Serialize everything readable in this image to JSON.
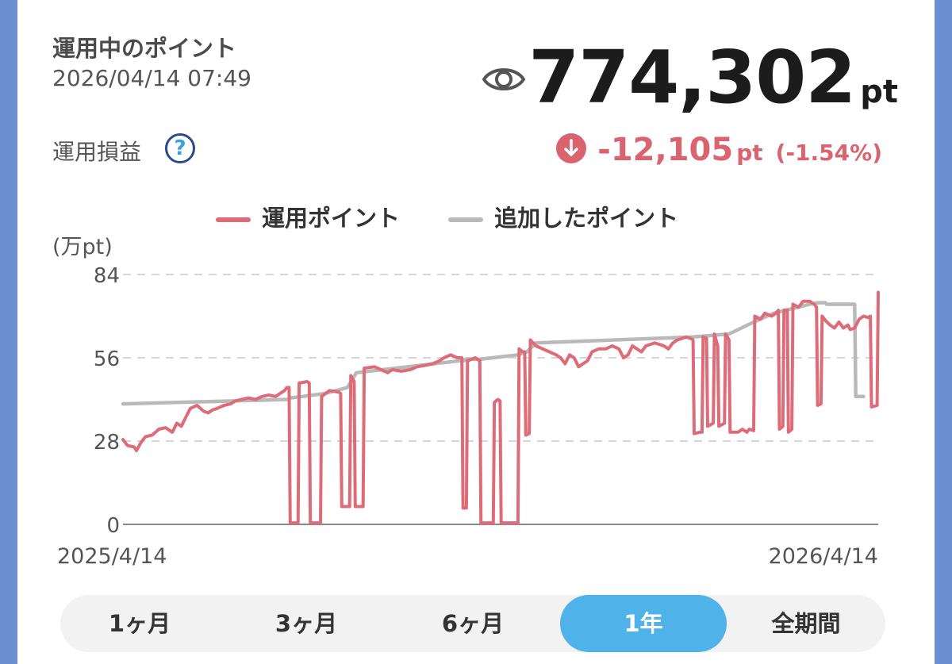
{
  "header": {
    "title": "運用中のポイント",
    "timestamp": "2026/04/14 07:49",
    "total_value": "774,302",
    "total_unit": "pt",
    "pl_label": "運用損益",
    "help_symbol": "?",
    "change_value": "-12,105",
    "change_unit": "pt",
    "change_percent": "(-1.54%)"
  },
  "colors": {
    "invested": "#dd6b78",
    "added": "#b9b9b9",
    "accent": "#4fb2e8",
    "negative": "#d9636e"
  },
  "chart_data": {
    "type": "line",
    "ylabel": "(万pt)",
    "ylim": [
      0,
      84
    ],
    "yticks": [
      "84",
      "56",
      "28",
      "0"
    ],
    "x_labels": [
      "2025/4/14",
      "2026/4/14"
    ],
    "grid": true,
    "legend_position": "top",
    "x_unit": "days since 2025/4/14",
    "series": [
      {
        "name": "運用ポイント",
        "color": "#dd6b78",
        "points": [
          [
            0,
            28.5
          ],
          [
            2,
            26.5
          ],
          [
            5,
            26
          ],
          [
            6,
            24.8
          ],
          [
            8,
            27.5
          ],
          [
            10,
            29.5
          ],
          [
            13,
            30
          ],
          [
            16,
            32
          ],
          [
            19,
            32.5
          ],
          [
            22,
            31
          ],
          [
            24,
            34
          ],
          [
            26,
            33
          ],
          [
            28,
            36
          ],
          [
            30,
            39
          ],
          [
            33,
            40
          ],
          [
            36,
            38
          ],
          [
            38,
            37.5
          ],
          [
            40,
            38.5
          ],
          [
            42,
            39
          ],
          [
            45,
            40
          ],
          [
            48,
            40.5
          ],
          [
            50,
            41.5
          ],
          [
            53,
            42
          ],
          [
            56,
            42.5
          ],
          [
            59,
            42
          ],
          [
            62,
            43
          ],
          [
            65,
            43.5
          ],
          [
            68,
            43
          ],
          [
            70,
            44
          ],
          [
            72,
            45
          ],
          [
            73,
            46
          ],
          [
            74,
            46
          ],
          [
            74.5,
            0.5
          ],
          [
            78,
            0.5
          ],
          [
            78.5,
            47.5
          ],
          [
            82,
            48
          ],
          [
            83,
            47.5
          ],
          [
            83.5,
            0.5
          ],
          [
            88,
            0.5
          ],
          [
            88.5,
            43
          ],
          [
            92,
            45
          ],
          [
            96,
            44.5
          ],
          [
            97,
            44
          ],
          [
            97.5,
            6
          ],
          [
            101,
            6
          ],
          [
            101.5,
            50
          ],
          [
            103,
            48
          ],
          [
            103.5,
            6
          ],
          [
            107,
            6
          ],
          [
            107.5,
            52.5
          ],
          [
            112,
            53
          ],
          [
            115,
            52
          ],
          [
            118,
            51
          ],
          [
            120,
            52
          ],
          [
            124,
            51.5
          ],
          [
            128,
            52
          ],
          [
            131,
            53
          ],
          [
            135,
            53.5
          ],
          [
            138,
            54
          ],
          [
            141,
            55
          ],
          [
            143,
            56
          ],
          [
            146,
            57
          ],
          [
            149,
            56
          ],
          [
            151,
            56
          ],
          [
            151.5,
            5.5
          ],
          [
            153,
            5.5
          ],
          [
            153.5,
            55
          ],
          [
            157,
            56
          ],
          [
            159,
            55
          ],
          [
            159.5,
            0.5
          ],
          [
            165,
            0.5
          ],
          [
            165.5,
            41
          ],
          [
            167,
            42
          ],
          [
            168,
            41.5
          ],
          [
            168.5,
            0.5
          ],
          [
            175,
            0.5
          ],
          [
            176,
            0.5
          ],
          [
            176.5,
            59
          ],
          [
            178,
            58
          ],
          [
            179,
            58
          ],
          [
            179.5,
            30
          ],
          [
            181,
            30.5
          ],
          [
            181.5,
            62
          ],
          [
            184,
            60
          ],
          [
            187,
            59
          ],
          [
            190,
            58
          ],
          [
            193,
            57
          ],
          [
            195,
            56
          ],
          [
            197,
            54
          ],
          [
            199,
            57
          ],
          [
            201,
            56
          ],
          [
            203,
            53
          ],
          [
            205,
            54
          ],
          [
            207,
            55
          ],
          [
            209,
            58
          ],
          [
            212,
            59
          ],
          [
            215,
            59
          ],
          [
            218,
            60
          ],
          [
            221,
            59
          ],
          [
            223,
            56
          ],
          [
            225,
            57
          ],
          [
            227,
            60
          ],
          [
            229,
            59
          ],
          [
            231,
            58
          ],
          [
            233,
            60
          ],
          [
            235,
            60.5
          ],
          [
            237,
            61
          ],
          [
            239,
            60.5
          ],
          [
            241,
            60
          ],
          [
            243,
            59
          ],
          [
            245,
            61
          ],
          [
            247,
            62
          ],
          [
            249,
            62.5
          ],
          [
            251,
            63
          ],
          [
            253,
            62.5
          ],
          [
            254,
            62
          ],
          [
            254.5,
            30.5
          ],
          [
            257,
            31
          ],
          [
            258,
            31
          ],
          [
            258.5,
            63
          ],
          [
            260,
            62.5
          ],
          [
            260.5,
            33
          ],
          [
            263,
            34
          ],
          [
            263.5,
            64
          ],
          [
            265,
            60
          ],
          [
            265.5,
            33
          ],
          [
            268,
            34
          ],
          [
            268.5,
            64
          ],
          [
            270,
            62
          ],
          [
            270.5,
            31
          ],
          [
            274,
            31
          ],
          [
            276,
            32
          ],
          [
            278,
            31
          ],
          [
            279,
            32
          ],
          [
            281,
            31.5
          ],
          [
            281.5,
            70
          ],
          [
            284,
            69
          ],
          [
            286,
            71
          ],
          [
            289,
            70
          ],
          [
            291,
            71
          ],
          [
            292,
            72
          ],
          [
            292.5,
            32
          ],
          [
            294,
            33
          ],
          [
            294.5,
            72
          ],
          [
            296,
            72
          ],
          [
            296.5,
            31
          ],
          [
            298,
            32
          ],
          [
            298.5,
            74
          ],
          [
            301,
            73
          ],
          [
            303,
            75
          ],
          [
            306,
            75
          ],
          [
            308,
            74
          ],
          [
            309,
            73
          ],
          [
            309.5,
            40
          ],
          [
            311,
            40.5
          ],
          [
            311.5,
            70
          ],
          [
            313,
            68.5
          ],
          [
            315,
            67
          ],
          [
            317,
            66
          ],
          [
            319,
            68
          ],
          [
            321,
            66
          ],
          [
            323,
            67
          ],
          [
            324,
            65.5
          ],
          [
            326,
            66
          ],
          [
            328,
            69
          ],
          [
            330,
            70
          ],
          [
            332,
            69.5
          ],
          [
            333,
            70
          ],
          [
            333.5,
            39.5
          ],
          [
            336,
            40
          ],
          [
            336.5,
            78
          ]
        ]
      },
      {
        "name": "追加したポイント",
        "color": "#b9b9b9",
        "points": [
          [
            0,
            40.5
          ],
          [
            74,
            42
          ],
          [
            74.5,
            42.5
          ],
          [
            80,
            43
          ],
          [
            85,
            43.5
          ],
          [
            90,
            44
          ],
          [
            95,
            45
          ],
          [
            100,
            46
          ],
          [
            104,
            51
          ],
          [
            150,
            55
          ],
          [
            152,
            55
          ],
          [
            152.5,
            55.5
          ],
          [
            158,
            55.5
          ],
          [
            159,
            55.5
          ],
          [
            176,
            57
          ],
          [
            180,
            58
          ],
          [
            184,
            61
          ],
          [
            254,
            63
          ],
          [
            270,
            64
          ],
          [
            281,
            68
          ],
          [
            290,
            71
          ],
          [
            298,
            72.5
          ],
          [
            306,
            74
          ],
          [
            310,
            74.5
          ],
          [
            311,
            74.5
          ],
          [
            313,
            74.5
          ],
          [
            313.5,
            74
          ],
          [
            326,
            74
          ],
          [
            326.5,
            43
          ],
          [
            330,
            43
          ]
        ]
      }
    ]
  },
  "tabs": [
    {
      "label": "1ヶ月",
      "active": false
    },
    {
      "label": "3ヶ月",
      "active": false
    },
    {
      "label": "6ヶ月",
      "active": false
    },
    {
      "label": "1年",
      "active": true
    },
    {
      "label": "全期間",
      "active": false
    }
  ]
}
